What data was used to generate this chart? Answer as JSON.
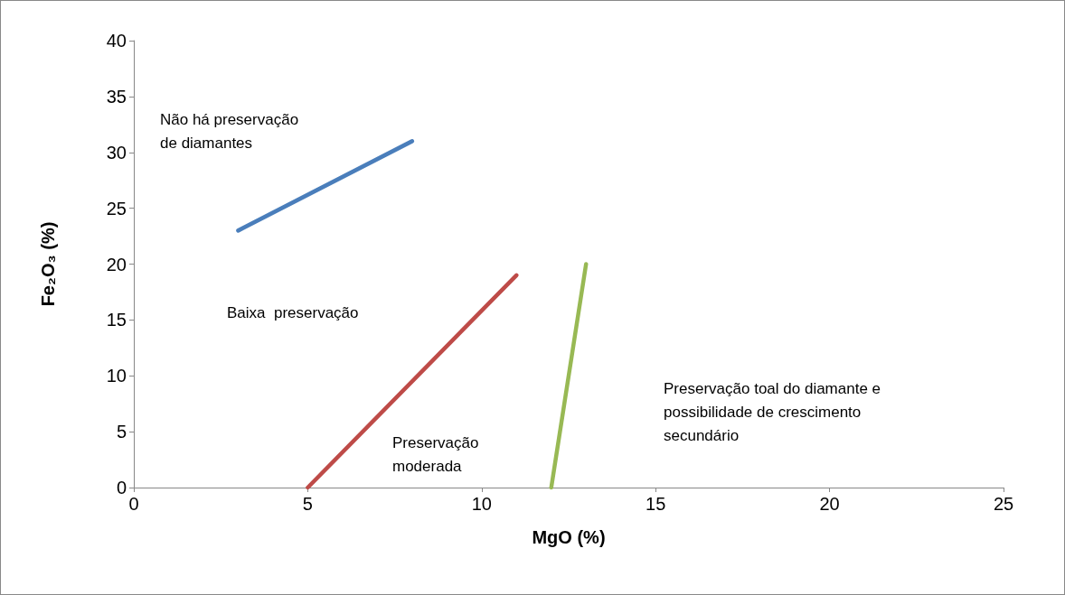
{
  "chart_data": {
    "type": "line",
    "xlabel": "MgO (%)",
    "ylabel": "Fe₂O₃ (%)",
    "xlim": [
      0,
      25
    ],
    "xticks": [
      0,
      5,
      10,
      15,
      20,
      25
    ],
    "ylim": [
      0,
      40
    ],
    "yticks": [
      0,
      5,
      10,
      15,
      20,
      25,
      30,
      35,
      40
    ],
    "grid": false,
    "marker": "none",
    "line_style": "solid",
    "series": [
      {
        "color": "#4a7ebb",
        "x": [
          3,
          8
        ],
        "values": [
          23,
          31
        ]
      },
      {
        "color": "#be4b48",
        "x": [
          5,
          11
        ],
        "values": [
          0,
          19
        ]
      },
      {
        "color": "#98b954",
        "x": [
          12,
          13
        ],
        "values": [
          0,
          20
        ]
      }
    ],
    "annotations": [
      "Não há preservação\nde diamantes",
      "Baixa  preservação",
      "Preservação\nmoderada",
      "Preservação toal do diamante e\npossibilidade de crescimento\nsecundário"
    ]
  }
}
